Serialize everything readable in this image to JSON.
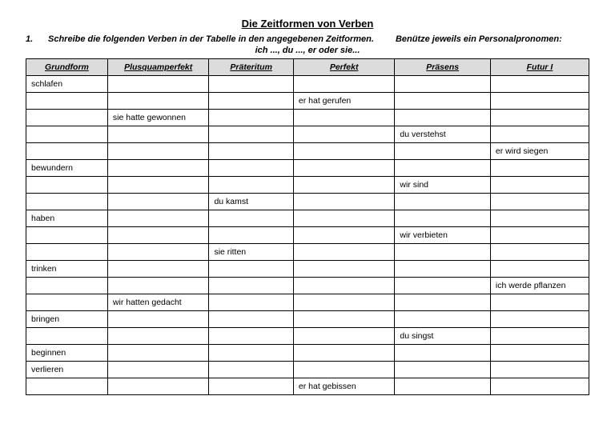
{
  "doc": {
    "title": "Die Zeitformen von Verben",
    "task_number": "1.",
    "instruction_part1": "Schreibe die folgenden Verben in der Tabelle in den angegebenen Zeitformen.",
    "instruction_part2": "Benütze jeweils ein  Personalpronomen:",
    "subline": "ich ...,  du ..., er  oder sie..."
  },
  "table": {
    "columns": [
      "Grundform",
      "Plusquamperfekt",
      "Präteritum",
      "Perfekt",
      "Präsens",
      "Futur I"
    ],
    "col_widths_pct": [
      14.5,
      18,
      15,
      18,
      17,
      17.5
    ],
    "header_bg": "#dcdcdc",
    "border_color": "#000000",
    "rows": [
      [
        "schlafen",
        "",
        "",
        "",
        "",
        ""
      ],
      [
        "",
        "",
        "",
        "er hat gerufen",
        "",
        ""
      ],
      [
        "",
        "sie hatte gewonnen",
        "",
        "",
        "",
        ""
      ],
      [
        "",
        "",
        "",
        "",
        "du verstehst",
        ""
      ],
      [
        "",
        "",
        "",
        "",
        "",
        "er wird siegen"
      ],
      [
        "bewundern",
        "",
        "",
        "",
        "",
        ""
      ],
      [
        "",
        "",
        "",
        "",
        "wir sind",
        ""
      ],
      [
        "",
        "",
        "du kamst",
        "",
        "",
        ""
      ],
      [
        "haben",
        "",
        "",
        "",
        "",
        ""
      ],
      [
        "",
        "",
        "",
        "",
        "wir verbieten",
        ""
      ],
      [
        "",
        "",
        "sie ritten",
        "",
        "",
        ""
      ],
      [
        "trinken",
        "",
        "",
        "",
        "",
        ""
      ],
      [
        "",
        "",
        "",
        "",
        "",
        "ich werde pflanzen"
      ],
      [
        "",
        "wir hatten gedacht",
        "",
        "",
        "",
        ""
      ],
      [
        "bringen",
        "",
        "",
        "",
        "",
        ""
      ],
      [
        "",
        "",
        "",
        "",
        "du singst",
        ""
      ],
      [
        "beginnen",
        "",
        "",
        "",
        "",
        ""
      ],
      [
        "verlieren",
        "",
        "",
        "",
        "",
        ""
      ],
      [
        "",
        "",
        "",
        "er hat gebissen",
        "",
        ""
      ]
    ]
  }
}
